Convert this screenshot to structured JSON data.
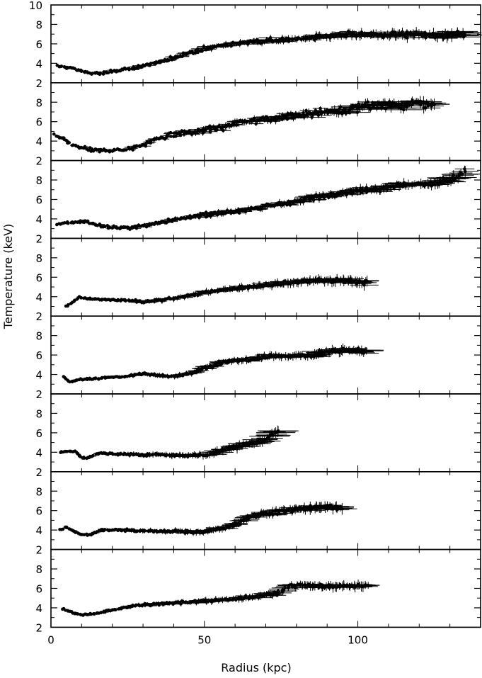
{
  "figure": {
    "xlabel": "Radius (kpc)",
    "ylabel": "Temperature (keV)"
  },
  "chart_data": {
    "type": "scatter",
    "stacked_panels": 8,
    "shared_x": true,
    "xlim": [
      0,
      140
    ],
    "xticks": [
      0,
      50,
      100
    ],
    "xlabel": "Radius (kpc)",
    "ylabel": "Temperature (keV)",
    "error_bars": true,
    "grid": false,
    "panels": [
      {
        "ylim": [
          2,
          10
        ],
        "yticks": [
          2,
          4,
          6,
          8,
          10
        ],
        "profile": [
          [
            2,
            3.7
          ],
          [
            5,
            3.6
          ],
          [
            8,
            3.4
          ],
          [
            11,
            3.1
          ],
          [
            14,
            2.95
          ],
          [
            17,
            2.95
          ],
          [
            20,
            3.2
          ],
          [
            25,
            3.4
          ],
          [
            30,
            3.7
          ],
          [
            35,
            4.1
          ],
          [
            40,
            4.6
          ],
          [
            45,
            5.1
          ],
          [
            50,
            5.5
          ],
          [
            55,
            5.8
          ],
          [
            60,
            6.0
          ],
          [
            65,
            6.2
          ],
          [
            70,
            6.3
          ],
          [
            75,
            6.4
          ],
          [
            80,
            6.5
          ],
          [
            85,
            6.7
          ],
          [
            90,
            6.8
          ],
          [
            95,
            6.9
          ],
          [
            100,
            7.0
          ],
          [
            105,
            6.9
          ],
          [
            110,
            6.9
          ],
          [
            115,
            7.0
          ],
          [
            120,
            6.9
          ],
          [
            125,
            6.8
          ],
          [
            130,
            6.9
          ],
          [
            135,
            7.1
          ]
        ],
        "scatter": 0.45
      },
      {
        "ylim": [
          2,
          10
        ],
        "yticks": [
          2,
          4,
          6,
          8
        ],
        "profile": [
          [
            1,
            4.6
          ],
          [
            4,
            4.2
          ],
          [
            7,
            3.6
          ],
          [
            10,
            3.3
          ],
          [
            13,
            3.1
          ],
          [
            16,
            3.05
          ],
          [
            20,
            3.05
          ],
          [
            24,
            3.1
          ],
          [
            28,
            3.3
          ],
          [
            32,
            3.9
          ],
          [
            36,
            4.4
          ],
          [
            40,
            4.7
          ],
          [
            45,
            4.9
          ],
          [
            50,
            5.1
          ],
          [
            55,
            5.4
          ],
          [
            60,
            5.8
          ],
          [
            65,
            6.1
          ],
          [
            70,
            6.3
          ],
          [
            75,
            6.4
          ],
          [
            80,
            6.6
          ],
          [
            85,
            6.9
          ],
          [
            90,
            7.0
          ],
          [
            95,
            7.2
          ],
          [
            100,
            7.5
          ],
          [
            105,
            7.6
          ],
          [
            110,
            7.7
          ],
          [
            115,
            7.7
          ],
          [
            120,
            7.8
          ],
          [
            125,
            7.7
          ]
        ],
        "scatter": 0.6
      },
      {
        "ylim": [
          2,
          10
        ],
        "yticks": [
          2,
          4,
          6,
          8
        ],
        "profile": [
          [
            2,
            3.4
          ],
          [
            5,
            3.6
          ],
          [
            8,
            3.7
          ],
          [
            11,
            3.7
          ],
          [
            14,
            3.5
          ],
          [
            18,
            3.2
          ],
          [
            22,
            3.1
          ],
          [
            26,
            3.1
          ],
          [
            30,
            3.3
          ],
          [
            35,
            3.6
          ],
          [
            40,
            3.9
          ],
          [
            45,
            4.2
          ],
          [
            50,
            4.4
          ],
          [
            55,
            4.6
          ],
          [
            60,
            4.8
          ],
          [
            65,
            5.0
          ],
          [
            70,
            5.2
          ],
          [
            75,
            5.5
          ],
          [
            80,
            5.8
          ],
          [
            85,
            6.1
          ],
          [
            90,
            6.4
          ],
          [
            95,
            6.7
          ],
          [
            100,
            6.9
          ],
          [
            105,
            7.1
          ],
          [
            110,
            7.3
          ],
          [
            115,
            7.5
          ],
          [
            120,
            7.6
          ],
          [
            125,
            7.7
          ],
          [
            130,
            8.0
          ],
          [
            135,
            8.8
          ]
        ],
        "scatter": 0.45
      },
      {
        "ylim": [
          2,
          10
        ],
        "yticks": [
          2,
          4,
          6,
          8
        ],
        "profile": [
          [
            5,
            3.0
          ],
          [
            7,
            3.4
          ],
          [
            9,
            3.9
          ],
          [
            12,
            3.8
          ],
          [
            16,
            3.7
          ],
          [
            20,
            3.65
          ],
          [
            25,
            3.6
          ],
          [
            30,
            3.5
          ],
          [
            35,
            3.6
          ],
          [
            40,
            3.8
          ],
          [
            45,
            4.1
          ],
          [
            50,
            4.4
          ],
          [
            55,
            4.7
          ],
          [
            60,
            4.9
          ],
          [
            65,
            5.0
          ],
          [
            70,
            5.2
          ],
          [
            75,
            5.4
          ],
          [
            80,
            5.5
          ],
          [
            85,
            5.7
          ],
          [
            90,
            5.6
          ],
          [
            95,
            5.7
          ],
          [
            100,
            5.6
          ],
          [
            103,
            5.4
          ]
        ],
        "scatter": 0.3
      },
      {
        "ylim": [
          2,
          10
        ],
        "yticks": [
          2,
          4,
          6,
          8
        ],
        "profile": [
          [
            4,
            3.8
          ],
          [
            6,
            3.2
          ],
          [
            8,
            3.4
          ],
          [
            10,
            3.5
          ],
          [
            15,
            3.6
          ],
          [
            20,
            3.7
          ],
          [
            25,
            3.8
          ],
          [
            30,
            4.1
          ],
          [
            35,
            3.9
          ],
          [
            40,
            3.8
          ],
          [
            45,
            4.1
          ],
          [
            50,
            4.7
          ],
          [
            55,
            5.2
          ],
          [
            60,
            5.4
          ],
          [
            65,
            5.6
          ],
          [
            70,
            5.8
          ],
          [
            75,
            5.9
          ],
          [
            80,
            5.9
          ],
          [
            85,
            6.0
          ],
          [
            90,
            6.3
          ],
          [
            95,
            6.5
          ],
          [
            100,
            6.5
          ],
          [
            103,
            6.2
          ]
        ],
        "scatter": 0.3
      },
      {
        "ylim": [
          2,
          10
        ],
        "yticks": [
          2,
          4,
          6,
          8
        ],
        "profile": [
          [
            3,
            4.0
          ],
          [
            5,
            4.1
          ],
          [
            8,
            4.1
          ],
          [
            10,
            3.4
          ],
          [
            12,
            3.4
          ],
          [
            15,
            3.9
          ],
          [
            20,
            3.85
          ],
          [
            25,
            3.8
          ],
          [
            30,
            3.75
          ],
          [
            35,
            3.75
          ],
          [
            40,
            3.7
          ],
          [
            45,
            3.65
          ],
          [
            50,
            3.7
          ],
          [
            55,
            4.1
          ],
          [
            60,
            4.5
          ],
          [
            65,
            4.9
          ],
          [
            70,
            5.3
          ],
          [
            74,
            6.3
          ]
        ],
        "scatter": 0.25
      },
      {
        "ylim": [
          2,
          10
        ],
        "yticks": [
          2,
          4,
          6,
          8
        ],
        "profile": [
          [
            3,
            4.0
          ],
          [
            5,
            4.3
          ],
          [
            8,
            3.8
          ],
          [
            10,
            3.5
          ],
          [
            13,
            3.5
          ],
          [
            16,
            4.0
          ],
          [
            20,
            4.0
          ],
          [
            25,
            4.0
          ],
          [
            30,
            3.9
          ],
          [
            35,
            3.9
          ],
          [
            40,
            3.9
          ],
          [
            45,
            3.8
          ],
          [
            50,
            3.8
          ],
          [
            55,
            4.1
          ],
          [
            60,
            4.6
          ],
          [
            65,
            5.4
          ],
          [
            70,
            5.7
          ],
          [
            75,
            5.9
          ],
          [
            80,
            6.1
          ],
          [
            85,
            6.3
          ],
          [
            90,
            6.4
          ],
          [
            95,
            6.3
          ]
        ],
        "scatter": 0.3
      },
      {
        "ylim": [
          2,
          10
        ],
        "yticks": [
          2,
          4,
          6,
          8
        ],
        "profile": [
          [
            4,
            3.9
          ],
          [
            6,
            3.6
          ],
          [
            9,
            3.3
          ],
          [
            12,
            3.3
          ],
          [
            16,
            3.5
          ],
          [
            20,
            3.8
          ],
          [
            25,
            4.1
          ],
          [
            30,
            4.3
          ],
          [
            35,
            4.4
          ],
          [
            40,
            4.5
          ],
          [
            45,
            4.6
          ],
          [
            50,
            4.7
          ],
          [
            55,
            4.8
          ],
          [
            60,
            4.9
          ],
          [
            65,
            5.1
          ],
          [
            70,
            5.3
          ],
          [
            75,
            5.6
          ],
          [
            78,
            6.3
          ],
          [
            82,
            6.4
          ],
          [
            85,
            6.2
          ],
          [
            90,
            6.2
          ],
          [
            95,
            6.3
          ],
          [
            100,
            6.2
          ],
          [
            103,
            6.3
          ]
        ],
        "scatter": 0.3
      }
    ]
  }
}
